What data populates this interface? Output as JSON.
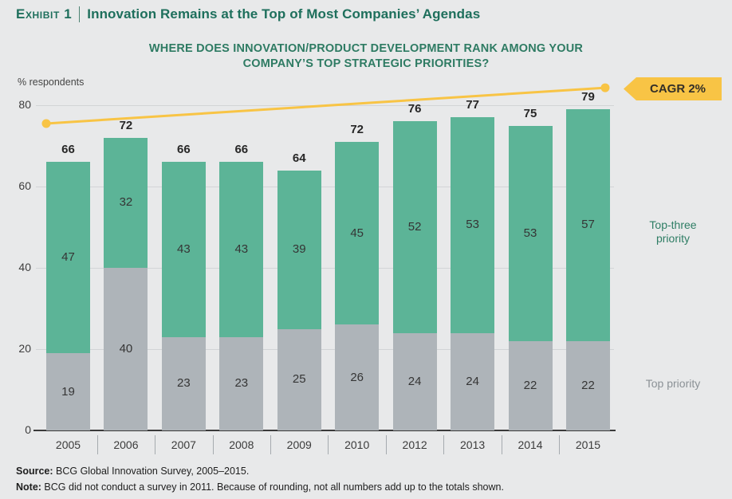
{
  "header": {
    "exhibit_label": "Exhibit 1",
    "title": "Innovation Remains at the Top of Most Companies’ Agendas"
  },
  "chart": {
    "question_line1": "WHERE DOES INNOVATION/PRODUCT DEVELOPMENT RANK AMONG YOUR",
    "question_line2": "COMPANY’S TOP STRATEGIC PRIORITIES?",
    "unit_label": "% respondents"
  },
  "legend": {
    "top_three": "Top-three priority",
    "top": "Top priority"
  },
  "trend": {
    "label": "CAGR 2%"
  },
  "footer": {
    "source_label": "Source:",
    "source_text": " BCG Global Innovation Survey, 2005–2015.",
    "note_label": "Note:",
    "note_text": " BCG did not conduct a survey in 2011. Because of rounding, not all numbers add up to the totals shown."
  },
  "colors": {
    "title_teal": "#1e6f5c",
    "subtitle_teal": "#2e7b63",
    "green_bar": "#5cb497",
    "gray_bar": "#aeb4b9",
    "trend_yellow": "#f8c445",
    "background": "#e8e9ea",
    "gridline": "#d2d4d6",
    "axis": "#3a3a3a"
  },
  "chart_data": {
    "type": "bar",
    "stacked": true,
    "title": "Where does innovation/product development rank among your company’s top strategic priorities?",
    "xlabel": "",
    "ylabel": "% respondents",
    "ylim": [
      0,
      80
    ],
    "y_ticks": [
      0,
      20,
      40,
      60,
      80
    ],
    "grid": "horizontal",
    "legend_position": "right",
    "categories": [
      "2005",
      "2006",
      "2007",
      "2008",
      "2009",
      "2010",
      "2012",
      "2013",
      "2014",
      "2015"
    ],
    "series": [
      {
        "name": "Top priority",
        "color": "#aeb4b9",
        "values": [
          19,
          40,
          23,
          23,
          25,
          26,
          24,
          24,
          22,
          22
        ]
      },
      {
        "name": "Top-three priority",
        "color": "#5cb497",
        "values": [
          47,
          32,
          43,
          43,
          39,
          45,
          52,
          53,
          53,
          57
        ]
      }
    ],
    "totals": [
      66,
      72,
      66,
      66,
      64,
      72,
      76,
      77,
      75,
      79
    ],
    "trend_line": {
      "label": "CAGR 2%",
      "color": "#f8c445",
      "start_value": 75.5,
      "end_value": 84.3
    }
  }
}
